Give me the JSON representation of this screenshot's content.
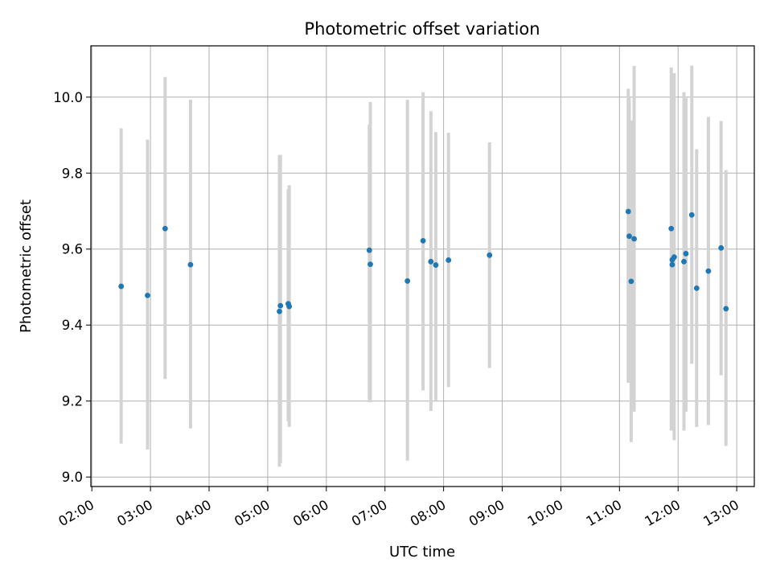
{
  "chart_data": {
    "type": "scatter",
    "title": "Photometric offset variation",
    "xlabel": "UTC time",
    "ylabel": "Photometric offset",
    "x_unit": "time of day (HH:MM)",
    "xlim": [
      "01:59",
      "13:18"
    ],
    "ylim": [
      8.975,
      10.135
    ],
    "x_ticks": [
      "02:00",
      "03:00",
      "04:00",
      "05:00",
      "06:00",
      "07:00",
      "08:00",
      "09:00",
      "10:00",
      "11:00",
      "12:00",
      "13:00"
    ],
    "y_ticks": [
      "9.0",
      "9.2",
      "9.4",
      "9.6",
      "9.8",
      "10.0"
    ],
    "grid": true,
    "legend": "none",
    "point_color": "#1f77b4",
    "errorbar_color": "#d3d3d3",
    "points": [
      {
        "x": "02:30",
        "y": 9.502,
        "ylow": 9.088,
        "yhigh": 9.918
      },
      {
        "x": "02:57",
        "y": 9.478,
        "ylow": 9.072,
        "yhigh": 9.888
      },
      {
        "x": "03:15",
        "y": 9.654,
        "ylow": 9.258,
        "yhigh": 10.053
      },
      {
        "x": "03:41",
        "y": 9.559,
        "ylow": 9.128,
        "yhigh": 9.993
      },
      {
        "x": "05:12",
        "y": 9.436,
        "ylow": 9.027,
        "yhigh": 9.848
      },
      {
        "x": "05:13",
        "y": 9.451,
        "ylow": 9.037,
        "yhigh": 9.848
      },
      {
        "x": "05:21",
        "y": 9.456,
        "ylow": 9.147,
        "yhigh": 9.758
      },
      {
        "x": "05:22",
        "y": 9.449,
        "ylow": 9.132,
        "yhigh": 9.768
      },
      {
        "x": "06:44",
        "y": 9.597,
        "ylow": 9.197,
        "yhigh": 9.928
      },
      {
        "x": "06:45",
        "y": 9.56,
        "ylow": 9.197,
        "yhigh": 9.987
      },
      {
        "x": "07:23",
        "y": 9.516,
        "ylow": 9.043,
        "yhigh": 9.993
      },
      {
        "x": "07:39",
        "y": 9.622,
        "ylow": 9.228,
        "yhigh": 10.013
      },
      {
        "x": "07:47",
        "y": 9.567,
        "ylow": 9.174,
        "yhigh": 9.963
      },
      {
        "x": "07:52",
        "y": 9.558,
        "ylow": 9.202,
        "yhigh": 9.908
      },
      {
        "x": "08:05",
        "y": 9.571,
        "ylow": 9.237,
        "yhigh": 9.906
      },
      {
        "x": "08:47",
        "y": 9.584,
        "ylow": 9.287,
        "yhigh": 9.881
      },
      {
        "x": "11:09",
        "y": 9.699,
        "ylow": 9.248,
        "yhigh": 10.022
      },
      {
        "x": "11:10",
        "y": 9.634,
        "ylow": 9.248,
        "yhigh": 9.998
      },
      {
        "x": "11:12",
        "y": 9.515,
        "ylow": 9.092,
        "yhigh": 9.939
      },
      {
        "x": "11:15",
        "y": 9.627,
        "ylow": 9.172,
        "yhigh": 10.082
      },
      {
        "x": "11:53",
        "y": 9.654,
        "ylow": 9.122,
        "yhigh": 10.078
      },
      {
        "x": "11:54",
        "y": 9.572,
        "ylow": 9.127,
        "yhigh": 10.018
      },
      {
        "x": "11:54",
        "y": 9.559,
        "ylow": 9.132,
        "yhigh": 9.988
      },
      {
        "x": "11:56",
        "y": 9.579,
        "ylow": 9.097,
        "yhigh": 10.063
      },
      {
        "x": "12:06",
        "y": 9.567,
        "ylow": 9.122,
        "yhigh": 10.013
      },
      {
        "x": "12:08",
        "y": 9.588,
        "ylow": 9.172,
        "yhigh": 9.998
      },
      {
        "x": "12:14",
        "y": 9.69,
        "ylow": 9.298,
        "yhigh": 10.083
      },
      {
        "x": "12:19",
        "y": 9.497,
        "ylow": 9.132,
        "yhigh": 9.863
      },
      {
        "x": "12:31",
        "y": 9.542,
        "ylow": 9.137,
        "yhigh": 9.948
      },
      {
        "x": "12:44",
        "y": 9.603,
        "ylow": 9.268,
        "yhigh": 9.937
      },
      {
        "x": "12:49",
        "y": 9.443,
        "ylow": 9.082,
        "yhigh": 9.808
      }
    ]
  }
}
